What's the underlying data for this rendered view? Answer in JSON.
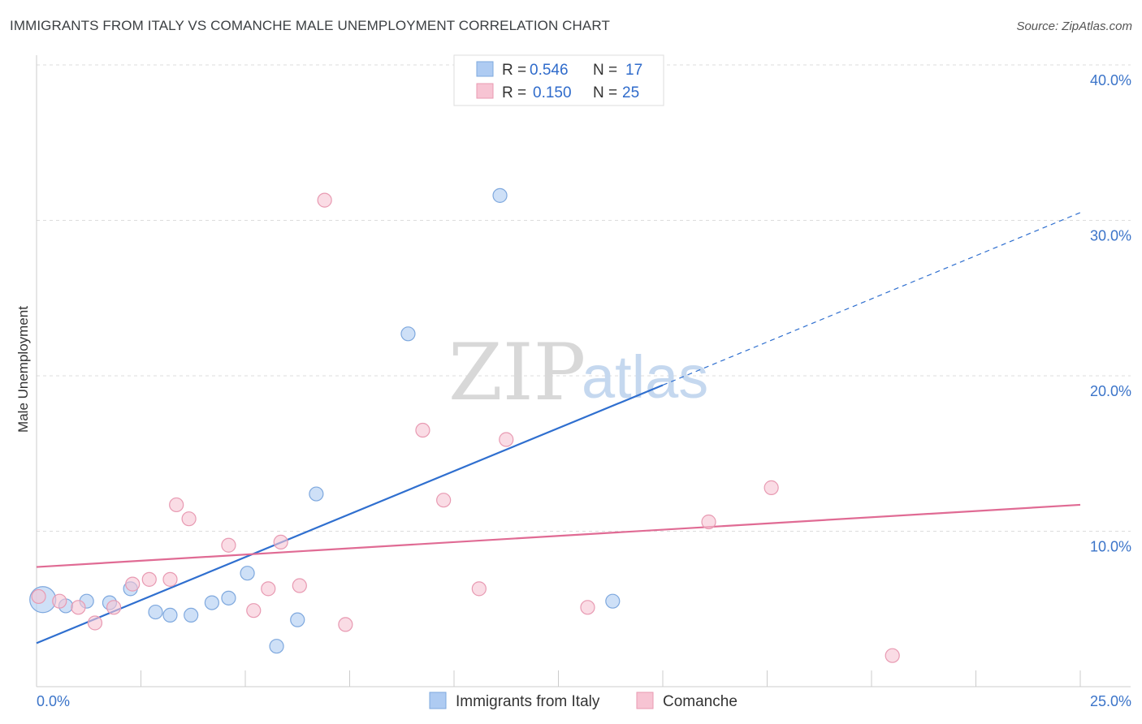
{
  "header": {
    "title": "IMMIGRANTS FROM ITALY VS COMANCHE MALE UNEMPLOYMENT CORRELATION CHART",
    "source": "Source: ZipAtlas.com"
  },
  "watermark": {
    "zip": "ZIP",
    "atlas": "atlas"
  },
  "legend": {
    "r_label": "R =",
    "n_label": "N =",
    "entries": [
      {
        "r": "0.546",
        "n": "17",
        "color": "#aecbf2",
        "stroke": "#7ea8de"
      },
      {
        "r": "0.150",
        "n": "25",
        "color": "#f7c4d3",
        "stroke": "#e89ab2"
      }
    ]
  },
  "bottom_legend": [
    {
      "label": "Immigrants from Italy",
      "color": "#aecbf2",
      "stroke": "#7ea8de"
    },
    {
      "label": "Comanche",
      "color": "#f7c4d3",
      "stroke": "#e89ab2"
    }
  ],
  "chart_data": {
    "type": "scatter",
    "title": "IMMIGRANTS FROM ITALY VS COMANCHE MALE UNEMPLOYMENT CORRELATION CHART",
    "xlabel": "",
    "ylabel": "Male Unemployment",
    "xlim": [
      0,
      25
    ],
    "ylim": [
      0,
      40
    ],
    "x_tick_labels": [
      {
        "value": 0,
        "label": "0.0%"
      },
      {
        "value": 25,
        "label": "25.0%"
      }
    ],
    "y_tick_labels": [
      {
        "value": 10,
        "label": "10.0%"
      },
      {
        "value": 20,
        "label": "20.0%"
      },
      {
        "value": 30,
        "label": "30.0%"
      },
      {
        "value": 40,
        "label": "40.0%"
      }
    ],
    "series": [
      {
        "name": "Immigrants from Italy",
        "color": "#aecbf2",
        "stroke": "#7ea8de",
        "line_color": "#2f6fcf",
        "points": [
          {
            "x": 0.15,
            "y": 5.6,
            "size": "large"
          },
          {
            "x": 0.7,
            "y": 5.2
          },
          {
            "x": 1.2,
            "y": 5.5
          },
          {
            "x": 1.75,
            "y": 5.4
          },
          {
            "x": 2.25,
            "y": 6.3
          },
          {
            "x": 2.85,
            "y": 4.8
          },
          {
            "x": 3.2,
            "y": 4.6
          },
          {
            "x": 3.7,
            "y": 4.6
          },
          {
            "x": 4.2,
            "y": 5.4
          },
          {
            "x": 4.6,
            "y": 5.7
          },
          {
            "x": 5.05,
            "y": 7.3
          },
          {
            "x": 5.75,
            "y": 2.6
          },
          {
            "x": 6.25,
            "y": 4.3
          },
          {
            "x": 6.7,
            "y": 12.4
          },
          {
            "x": 8.9,
            "y": 22.7
          },
          {
            "x": 11.1,
            "y": 31.6
          },
          {
            "x": 13.8,
            "y": 5.5
          }
        ],
        "trend": {
          "x0": 0,
          "y0": 2.8,
          "x1": 15.0,
          "y1": 19.4,
          "dash_x1": 25,
          "dash_y1": 30.5
        }
      },
      {
        "name": "Comanche",
        "color": "#f7c4d3",
        "stroke": "#e89ab2",
        "line_color": "#e06b94",
        "points": [
          {
            "x": 0.05,
            "y": 5.8
          },
          {
            "x": 0.55,
            "y": 5.5
          },
          {
            "x": 1.0,
            "y": 5.1
          },
          {
            "x": 1.4,
            "y": 4.1
          },
          {
            "x": 1.85,
            "y": 5.1
          },
          {
            "x": 2.3,
            "y": 6.6
          },
          {
            "x": 2.7,
            "y": 6.9
          },
          {
            "x": 3.2,
            "y": 6.9
          },
          {
            "x": 3.35,
            "y": 11.7
          },
          {
            "x": 3.65,
            "y": 10.8
          },
          {
            "x": 4.6,
            "y": 9.1
          },
          {
            "x": 5.2,
            "y": 4.9
          },
          {
            "x": 5.55,
            "y": 6.3
          },
          {
            "x": 5.85,
            "y": 9.3
          },
          {
            "x": 6.3,
            "y": 6.5
          },
          {
            "x": 6.9,
            "y": 31.3
          },
          {
            "x": 7.4,
            "y": 4.0
          },
          {
            "x": 9.25,
            "y": 16.5
          },
          {
            "x": 9.75,
            "y": 12.0
          },
          {
            "x": 10.6,
            "y": 6.3
          },
          {
            "x": 11.25,
            "y": 15.9
          },
          {
            "x": 13.2,
            "y": 5.1
          },
          {
            "x": 16.1,
            "y": 10.6
          },
          {
            "x": 17.6,
            "y": 12.8
          },
          {
            "x": 20.5,
            "y": 2.0
          }
        ],
        "trend": {
          "x0": 0,
          "y0": 7.7,
          "x1": 25,
          "y1": 11.7
        }
      }
    ]
  }
}
